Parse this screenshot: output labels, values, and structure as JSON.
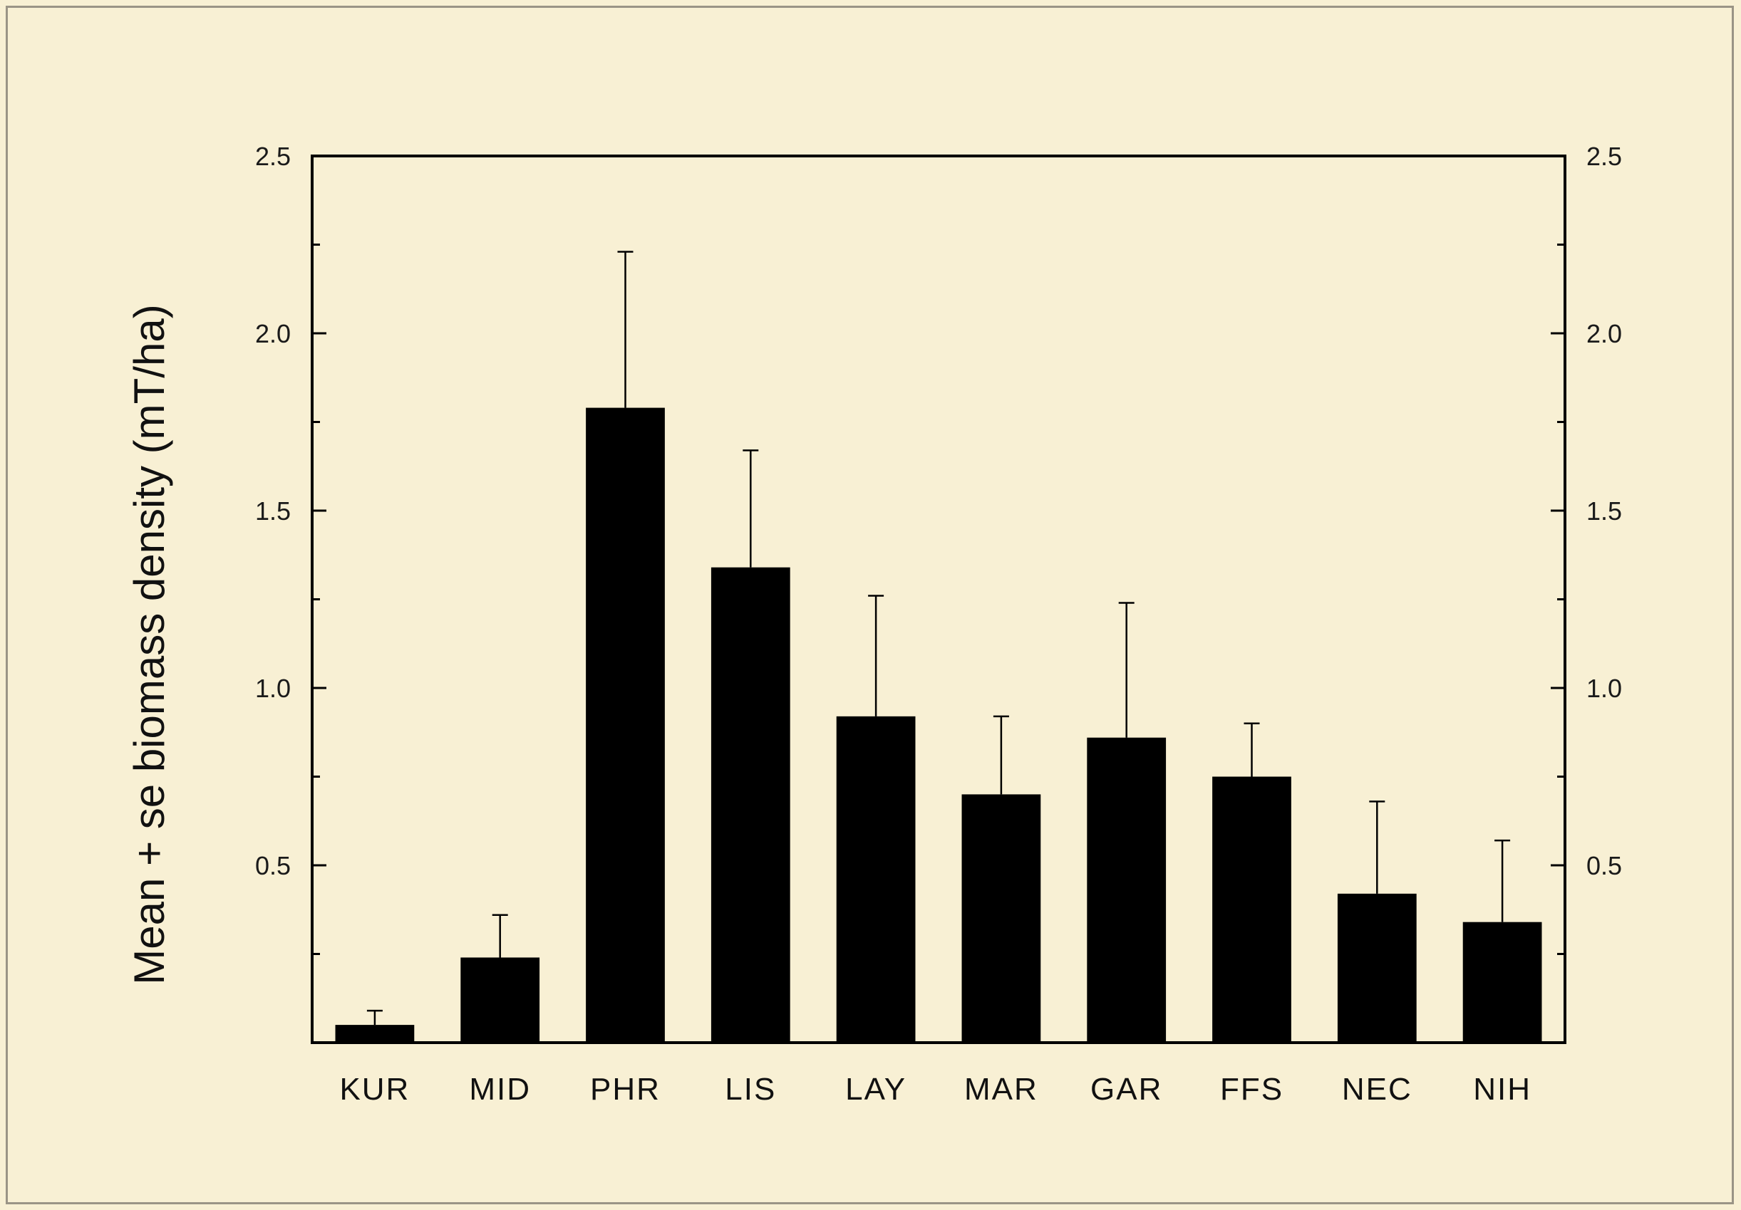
{
  "chart_data": {
    "type": "bar",
    "title": "",
    "xlabel": "",
    "ylabel": "Mean + se biomass density (mT/ha)",
    "categories": [
      "KUR",
      "MID",
      "PHR",
      "LIS",
      "LAY",
      "MAR",
      "GAR",
      "FFS",
      "NEC",
      "NIH"
    ],
    "values": [
      0.05,
      0.24,
      1.79,
      1.34,
      0.92,
      0.7,
      0.86,
      0.75,
      0.42,
      0.34
    ],
    "error_upper": [
      0.09,
      0.36,
      2.23,
      1.67,
      1.26,
      0.92,
      1.24,
      0.9,
      0.68,
      0.57
    ],
    "ylim": [
      0,
      2.5
    ],
    "yticks": [
      0.5,
      1.0,
      1.5,
      2.0,
      2.5
    ],
    "ytick_labels": [
      "0.5",
      "1.0",
      "1.5",
      "2.0",
      "2.5"
    ],
    "minor_yticks": [
      0.25,
      0.75,
      1.25,
      1.75,
      2.25
    ],
    "right_axis_mirrored": true,
    "bar_color": "#000000",
    "grid": false
  }
}
